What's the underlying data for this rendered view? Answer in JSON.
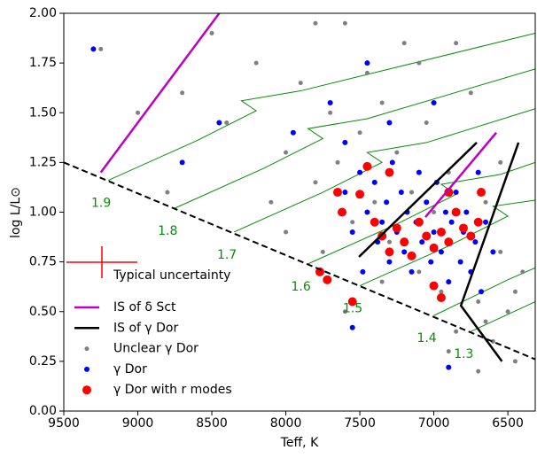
{
  "chart_data": {
    "type": "scatter",
    "x_label": "Teff, K",
    "y_label": "log L/L⊙",
    "xlim": [
      9500,
      6315
    ],
    "ylim": [
      0,
      2
    ],
    "xticks": [
      9500,
      9000,
      8500,
      8000,
      7500,
      7000,
      6500
    ],
    "yticks": [
      {
        "value": 0,
        "label": "0.00"
      },
      0.25,
      {
        "value": 0.5,
        "label": "0.50"
      },
      0.75,
      {
        "value": 1,
        "label": "1.00"
      },
      1.25,
      {
        "value": 1.5,
        "label": "1.50"
      },
      1.75,
      {
        "value": 2,
        "label": "2.00"
      }
    ],
    "uncertainty_label": "Typical uncertainty",
    "zams": {
      "color": "#000000",
      "dashed": true,
      "x": [
        9500,
        6315
      ],
      "y": [
        1.25,
        0.26
      ]
    },
    "tracks": [
      {
        "label": "1.9",
        "color": "#0a8a0a",
        "x": [
          9200,
          8600,
          8200,
          8300,
          7900,
          6315
        ],
        "y": [
          1.16,
          1.36,
          1.51,
          1.56,
          1.61,
          1.9
        ]
      },
      {
        "label": "1.8",
        "color": "#0a8a0a",
        "x": [
          8750,
          8150,
          7750,
          7850,
          7450,
          6315
        ],
        "y": [
          1.02,
          1.22,
          1.37,
          1.42,
          1.47,
          1.72
        ]
      },
      {
        "label": "1.7",
        "color": "#0a8a0a",
        "x": [
          8350,
          7750,
          7350,
          7450,
          7050,
          6315
        ],
        "y": [
          0.9,
          1.1,
          1.25,
          1.3,
          1.35,
          1.52
        ]
      },
      {
        "label": "1.6",
        "color": "#0a8a0a",
        "x": [
          7850,
          7250,
          6850,
          6950,
          6550,
          6315
        ],
        "y": [
          0.74,
          0.94,
          1.09,
          1.14,
          1.19,
          1.25
        ]
      },
      {
        "label": "1.5",
        "color": "#0a8a0a",
        "x": [
          7500,
          6900,
          6500,
          6600,
          6315
        ],
        "y": [
          0.63,
          0.83,
          0.98,
          1.03,
          1.06
        ]
      },
      {
        "label": "1.4",
        "color": "#0a8a0a",
        "x": [
          7000,
          6500,
          6315
        ],
        "y": [
          0.48,
          0.66,
          0.72
        ]
      },
      {
        "label": "1.3",
        "color": "#0a8a0a",
        "x": [
          6750,
          6315
        ],
        "y": [
          0.4,
          0.55
        ]
      }
    ],
    "series": [
      {
        "name": "IS of δ Sct",
        "kind": "line",
        "color": "#c000c0",
        "x": [
          9250,
          8450,
          null,
          6578,
          7057
        ],
        "y": [
          1.2,
          2.0,
          null,
          1.4,
          0.975
        ]
      },
      {
        "name": "IS of γ Dor",
        "kind": "line",
        "color": "#000000",
        "x": [
          7506,
          6710,
          null,
          6428,
          6817,
          6540
        ],
        "y": [
          0.775,
          1.35,
          null,
          1.35,
          0.53,
          0.25
        ]
      },
      {
        "name": "Unclear γ Dor",
        "kind": "points",
        "color": "#808080",
        "size": 2.5,
        "x": [
          9250,
          8700,
          8400,
          8200,
          8000,
          7900,
          7800,
          7750,
          7700,
          7650,
          7600,
          7550,
          7500,
          7450,
          7400,
          7350,
          7300,
          7250,
          7200,
          7150,
          7100,
          7050,
          7000,
          6950,
          6900,
          6850,
          6800,
          6750,
          6700,
          6650,
          6600,
          6550,
          6500,
          6450,
          6400,
          6700,
          6900,
          7600,
          8000,
          8500,
          8800,
          9000,
          7800,
          6550,
          6650,
          6450,
          7100,
          6850,
          8100,
          7350
        ],
        "y": [
          1.82,
          1.6,
          1.45,
          1.75,
          1.3,
          1.65,
          1.15,
          0.8,
          1.5,
          1.25,
          1.95,
          0.95,
          1.4,
          1.7,
          1.05,
          1.55,
          0.85,
          1.3,
          1.85,
          1.1,
          0.7,
          1.45,
          1.0,
          0.6,
          1.2,
          0.4,
          0.9,
          1.6,
          0.55,
          1.05,
          0.35,
          0.8,
          0.5,
          0.25,
          0.7,
          0.2,
          0.3,
          0.5,
          0.9,
          1.9,
          1.1,
          1.5,
          1.95,
          1.25,
          0.45,
          0.6,
          1.75,
          1.85,
          1.05,
          0.65
        ]
      },
      {
        "name": "γ Dor",
        "kind": "points",
        "color": "#0000ff",
        "size": 3,
        "x": [
          9300,
          8450,
          8700,
          7950,
          7700,
          7600,
          7550,
          7500,
          7480,
          7450,
          7400,
          7380,
          7350,
          7320,
          7300,
          7280,
          7250,
          7220,
          7200,
          7180,
          7150,
          7120,
          7100,
          7080,
          7050,
          7020,
          7000,
          6980,
          6950,
          6920,
          6900,
          6880,
          6850,
          6820,
          6800,
          6780,
          6750,
          6720,
          6700,
          6680,
          6650,
          6600,
          7550,
          6900,
          7300,
          7000,
          7450,
          7600
        ],
        "y": [
          1.82,
          1.45,
          1.25,
          1.4,
          1.55,
          1.1,
          0.9,
          1.2,
          0.7,
          1.0,
          1.15,
          0.85,
          0.95,
          1.05,
          0.75,
          1.25,
          0.9,
          1.1,
          0.8,
          1.0,
          0.7,
          0.95,
          1.2,
          0.85,
          1.05,
          0.75,
          0.9,
          1.15,
          0.8,
          1.0,
          0.65,
          0.95,
          1.1,
          0.75,
          0.9,
          1.0,
          0.7,
          0.85,
          1.2,
          0.6,
          0.95,
          0.8,
          0.42,
          0.22,
          1.45,
          1.55,
          1.75,
          1.35
        ]
      },
      {
        "name": "γ Dor with r modes",
        "kind": "points",
        "color": "#ff0000",
        "size": 5,
        "x": [
          7450,
          7650,
          7500,
          7620,
          7400,
          7350,
          7300,
          7250,
          7200,
          7150,
          7100,
          7050,
          7000,
          6950,
          6900,
          6850,
          6800,
          6750,
          6700,
          6680,
          7770,
          7720,
          7550,
          7000,
          6950,
          7300,
          6900
        ],
        "y": [
          1.23,
          1.1,
          1.09,
          1.0,
          0.95,
          0.88,
          0.8,
          0.92,
          0.85,
          0.78,
          0.95,
          0.88,
          0.82,
          0.9,
          0.85,
          1.0,
          0.92,
          0.88,
          0.95,
          1.1,
          0.7,
          0.66,
          0.55,
          0.63,
          0.57,
          1.2,
          1.1
        ]
      }
    ]
  }
}
